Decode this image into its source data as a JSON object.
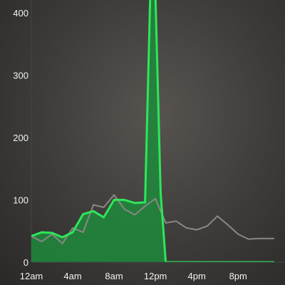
{
  "chart_data": {
    "type": "area",
    "title": "",
    "xlabel": "",
    "ylabel": "",
    "ylim": [
      0,
      420
    ],
    "xlim": [
      0,
      23.5
    ],
    "grid": false,
    "y_ticks": [
      {
        "value": 0,
        "label": "0"
      },
      {
        "value": 100,
        "label": "100"
      },
      {
        "value": 200,
        "label": "200"
      },
      {
        "value": 300,
        "label": "300"
      },
      {
        "value": 400,
        "label": "400"
      }
    ],
    "x_ticks": [
      {
        "value": 0,
        "label": "12am"
      },
      {
        "value": 4,
        "label": "4am"
      },
      {
        "value": 8,
        "label": "8am"
      },
      {
        "value": 12,
        "label": "12pm"
      },
      {
        "value": 16,
        "label": "4pm"
      },
      {
        "value": 20,
        "label": "8pm"
      }
    ],
    "series": [
      {
        "color": "#2ee65a",
        "fill": "#1e8a3c",
        "x": [
          0,
          1,
          2,
          3,
          4,
          5,
          6,
          7,
          8,
          9,
          10,
          11,
          11.5,
          12,
          12.5,
          13,
          14,
          15,
          16,
          17,
          18,
          19,
          20,
          21,
          22,
          23.5
        ],
        "values": [
          42,
          48,
          47,
          40,
          48,
          77,
          82,
          72,
          100,
          100,
          95,
          96,
          430,
          430,
          112,
          0,
          0,
          0,
          0,
          0,
          0,
          0,
          0,
          0,
          0,
          0
        ]
      },
      {
        "color": "#8a8784",
        "x": [
          0,
          1,
          2,
          3,
          4,
          5,
          6,
          7,
          8,
          9,
          10,
          11,
          12,
          13,
          14,
          15,
          16,
          17,
          18,
          19,
          20,
          21,
          22,
          23.5
        ],
        "values": [
          42,
          33,
          45,
          30,
          55,
          48,
          92,
          88,
          108,
          85,
          76,
          90,
          102,
          63,
          66,
          55,
          52,
          58,
          74,
          60,
          45,
          37,
          38,
          38
        ]
      }
    ]
  }
}
